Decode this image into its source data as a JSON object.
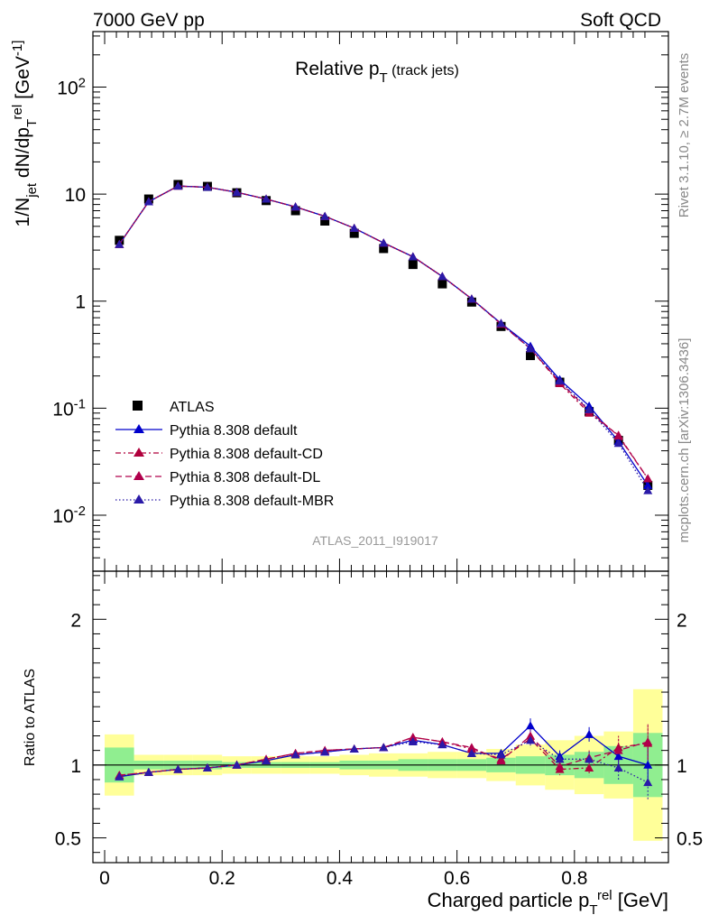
{
  "header": {
    "left": "7000 GeV pp",
    "right": "Soft QCD"
  },
  "side_labels": {
    "rivet": "Rivet 3.1.10, ≥ 2.7M events",
    "source": "mcplots.cern.ch [arXiv:1306.3436]"
  },
  "chart_data": [
    {
      "type": "line",
      "title": "Relative p_T (track jets)",
      "ylabel": "1/N_jet dN/dp_T^rel [GeV^-1]",
      "yscale": "log",
      "ylim": [
        0.003,
        330
      ],
      "xlim": [
        -0.02,
        0.96
      ],
      "annotation": "ATLAS_2011_I919017",
      "legend_position": "lower-left",
      "y_tick_labels": [
        "10^-2",
        "10^-1",
        "1",
        "10",
        "10^2"
      ],
      "x": [
        0.025,
        0.075,
        0.125,
        0.175,
        0.225,
        0.275,
        0.325,
        0.375,
        0.425,
        0.475,
        0.525,
        0.575,
        0.625,
        0.675,
        0.725,
        0.775,
        0.825,
        0.875,
        0.925
      ],
      "series": [
        {
          "name": "ATLAS",
          "color": "#000000",
          "marker": "square",
          "values": [
            3.7,
            9.0,
            12.3,
            11.8,
            10.3,
            8.7,
            7.0,
            5.6,
            4.3,
            3.1,
            2.2,
            1.45,
            0.98,
            0.58,
            0.31,
            0.175,
            0.093,
            0.05,
            0.019
          ]
        },
        {
          "name": "Pythia 8.308 default",
          "color": "#0000cc",
          "dash": "solid",
          "values": [
            3.4,
            8.5,
            11.9,
            11.6,
            10.4,
            9.0,
            7.6,
            6.2,
            4.8,
            3.5,
            2.6,
            1.7,
            1.05,
            0.62,
            0.38,
            0.185,
            0.105,
            0.049,
            0.019
          ]
        },
        {
          "name": "Pythia 8.308 default-CD",
          "color": "#b0003c",
          "dash": "6,3,2,3",
          "values": [
            3.4,
            8.5,
            11.9,
            11.6,
            10.4,
            9.0,
            7.6,
            6.2,
            4.8,
            3.5,
            2.6,
            1.7,
            1.05,
            0.62,
            0.36,
            0.17,
            0.09,
            0.056,
            0.022
          ]
        },
        {
          "name": "Pythia 8.308 default-DL",
          "color": "#b0004c",
          "dash": "7,4",
          "values": [
            3.4,
            8.5,
            11.9,
            11.6,
            10.4,
            9.0,
            7.6,
            6.2,
            4.8,
            3.5,
            2.6,
            1.7,
            1.05,
            0.61,
            0.36,
            0.175,
            0.095,
            0.055,
            0.022
          ]
        },
        {
          "name": "Pythia 8.308 default-MBR",
          "color": "#2a1aa8",
          "dash": "1.5,2.5",
          "values": [
            3.4,
            8.5,
            11.9,
            11.6,
            10.4,
            9.0,
            7.6,
            6.2,
            4.8,
            3.5,
            2.6,
            1.7,
            1.05,
            0.62,
            0.36,
            0.18,
            0.097,
            0.047,
            0.017
          ]
        }
      ]
    },
    {
      "type": "line",
      "ylabel": "Ratio to ATLAS",
      "xlabel": "Charged particle p_T^rel [GeV]",
      "ylim": [
        0.33,
        2.33
      ],
      "xlim": [
        -0.02,
        0.96
      ],
      "y_tick_labels": [
        "0.5",
        "1",
        "2"
      ],
      "x_tick_labels": [
        "0",
        "0.2",
        "0.4",
        "0.6",
        "0.8"
      ],
      "bands": {
        "stat_color": "#90ee90",
        "total_color": "#ffff99",
        "stat": [
          0.12,
          0.03,
          0.03,
          0.03,
          0.02,
          0.02,
          0.02,
          0.02,
          0.03,
          0.03,
          0.04,
          0.04,
          0.04,
          0.05,
          0.06,
          0.07,
          0.09,
          0.13,
          0.22
        ],
        "total": [
          0.21,
          0.07,
          0.07,
          0.07,
          0.06,
          0.06,
          0.06,
          0.06,
          0.07,
          0.08,
          0.08,
          0.09,
          0.09,
          0.11,
          0.14,
          0.17,
          0.2,
          0.23,
          0.52
        ]
      },
      "x": [
        0.025,
        0.075,
        0.125,
        0.175,
        0.225,
        0.275,
        0.325,
        0.375,
        0.425,
        0.475,
        0.525,
        0.575,
        0.625,
        0.675,
        0.725,
        0.775,
        0.825,
        0.875,
        0.925
      ],
      "series": [
        {
          "name": "Pythia 8.308 default",
          "color": "#0000cc",
          "dash": "solid",
          "values": [
            0.92,
            0.95,
            0.97,
            0.98,
            1.0,
            1.03,
            1.07,
            1.09,
            1.11,
            1.12,
            1.17,
            1.14,
            1.08,
            1.08,
            1.27,
            1.06,
            1.21,
            1.06,
            1.0
          ]
        },
        {
          "name": "Pythia 8.308 default-CD",
          "color": "#b0003c",
          "dash": "6,3,2,3",
          "values": [
            0.93,
            0.95,
            0.97,
            0.98,
            1.0,
            1.04,
            1.08,
            1.1,
            1.11,
            1.12,
            1.19,
            1.16,
            1.11,
            1.04,
            1.18,
            0.97,
            0.98,
            1.12,
            1.15
          ]
        },
        {
          "name": "Pythia 8.308 default-DL",
          "color": "#b0004c",
          "dash": "7,4",
          "values": [
            0.93,
            0.95,
            0.97,
            0.98,
            1.0,
            1.04,
            1.08,
            1.1,
            1.11,
            1.12,
            1.19,
            1.16,
            1.12,
            1.03,
            1.2,
            0.99,
            1.05,
            1.1,
            1.16
          ]
        },
        {
          "name": "Pythia 8.308 default-MBR",
          "color": "#2a1aa8",
          "dash": "1.5,2.5",
          "values": [
            0.92,
            0.95,
            0.97,
            0.98,
            1.0,
            1.03,
            1.07,
            1.09,
            1.11,
            1.12,
            1.16,
            1.14,
            1.08,
            1.07,
            1.17,
            1.04,
            1.04,
            0.98,
            0.88
          ]
        }
      ]
    }
  ]
}
